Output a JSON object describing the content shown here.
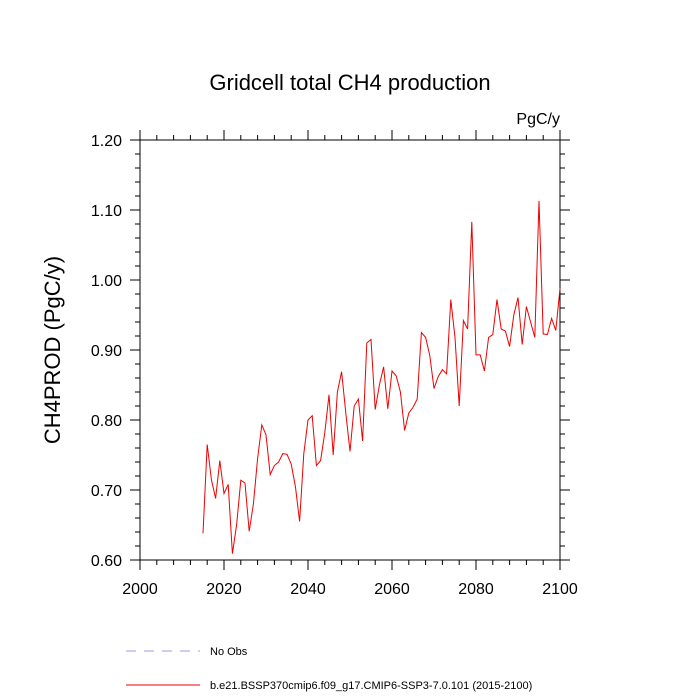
{
  "chart_data": {
    "type": "line",
    "title": "Gridcell total CH4 production",
    "units_label": "PgC/y",
    "ylabel": "CH4PROD  (PgC/y)",
    "xlabel": "",
    "xlim": [
      2000,
      2100
    ],
    "ylim": [
      0.6,
      1.2
    ],
    "x_major_ticks": [
      2000,
      2020,
      2040,
      2060,
      2080,
      2100
    ],
    "x_tick_labels": [
      "2000",
      "2020",
      "2040",
      "2060",
      "2080",
      "2100"
    ],
    "y_major_ticks": [
      0.6,
      0.7,
      0.8,
      0.9,
      1.0,
      1.1,
      1.2
    ],
    "y_tick_labels": [
      "0.60",
      "0.70",
      "0.80",
      "0.90",
      "1.00",
      "1.10",
      "1.20"
    ],
    "grid": false,
    "legend_position": "bottom-left",
    "series": [
      {
        "name": "No Obs",
        "color": "#9999ee",
        "style": "dashed",
        "x": [],
        "values": []
      },
      {
        "name": "b.e21.BSSP370cmip6.f09_g17.CMIP6-SSP3-7.0.101 (2015-2100)",
        "color": "#ee0000",
        "style": "solid",
        "x": [
          2015,
          2016,
          2017,
          2018,
          2019,
          2020,
          2021,
          2022,
          2023,
          2024,
          2025,
          2026,
          2027,
          2028,
          2029,
          2030,
          2031,
          2032,
          2033,
          2034,
          2035,
          2036,
          2037,
          2038,
          2039,
          2040,
          2041,
          2042,
          2043,
          2044,
          2045,
          2046,
          2047,
          2048,
          2049,
          2050,
          2051,
          2052,
          2053,
          2054,
          2055,
          2056,
          2057,
          2058,
          2059,
          2060,
          2061,
          2062,
          2063,
          2064,
          2065,
          2066,
          2067,
          2068,
          2069,
          2070,
          2071,
          2072,
          2073,
          2074,
          2075,
          2076,
          2077,
          2078,
          2079,
          2080,
          2081,
          2082,
          2083,
          2084,
          2085,
          2086,
          2087,
          2088,
          2089,
          2090,
          2091,
          2092,
          2093,
          2094,
          2095,
          2096,
          2097,
          2098,
          2099,
          2100
        ],
        "values": [
          0.638,
          0.765,
          0.715,
          0.688,
          0.742,
          0.695,
          0.708,
          0.609,
          0.65,
          0.714,
          0.71,
          0.641,
          0.68,
          0.745,
          0.793,
          0.779,
          0.722,
          0.735,
          0.74,
          0.752,
          0.751,
          0.737,
          0.705,
          0.655,
          0.752,
          0.8,
          0.806,
          0.735,
          0.742,
          0.782,
          0.836,
          0.75,
          0.84,
          0.869,
          0.81,
          0.755,
          0.82,
          0.83,
          0.77,
          0.91,
          0.915,
          0.815,
          0.85,
          0.876,
          0.816,
          0.87,
          0.863,
          0.84,
          0.785,
          0.81,
          0.818,
          0.83,
          0.925,
          0.918,
          0.892,
          0.845,
          0.862,
          0.872,
          0.866,
          0.972,
          0.918,
          0.82,
          0.942,
          0.93,
          1.083,
          0.893,
          0.893,
          0.87,
          0.918,
          0.922,
          0.972,
          0.93,
          0.927,
          0.905,
          0.95,
          0.975,
          0.908,
          0.962,
          0.94,
          0.918,
          1.113,
          0.923,
          0.922,
          0.945,
          0.928,
          0.988
        ]
      }
    ]
  }
}
